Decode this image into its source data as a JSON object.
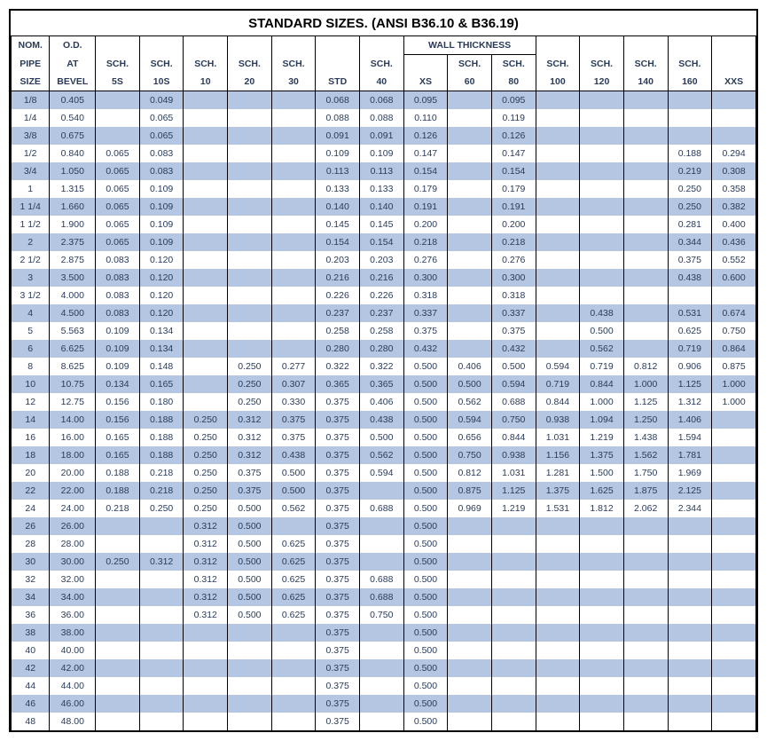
{
  "title": "STANDARD SIZES. (ANSI B36.10 & B36.19)",
  "wall_thickness_label": "WALL THICKNESS",
  "colors": {
    "row_alt": "#b5c6e3",
    "row_base": "#ffffff",
    "border": "#000000",
    "text": "#2a3b5a"
  },
  "header": {
    "col0": [
      "NOM.",
      "PIPE",
      "SIZE"
    ],
    "col1": [
      "O.D.",
      "AT",
      "BEVEL"
    ],
    "col2": [
      "",
      "SCH.",
      "5S"
    ],
    "col3": [
      "",
      "SCH.",
      "10S"
    ],
    "col4": [
      "",
      "SCH.",
      "10"
    ],
    "col5": [
      "",
      "SCH.",
      "20"
    ],
    "col6": [
      "",
      "SCH.",
      "30"
    ],
    "col7": [
      "",
      "",
      "STD"
    ],
    "col8": [
      "",
      "SCH.",
      "40"
    ],
    "col9": [
      "",
      "",
      "XS"
    ],
    "col10": [
      "",
      "SCH.",
      "60"
    ],
    "col11": [
      "",
      "SCH.",
      "80"
    ],
    "col12": [
      "",
      "SCH.",
      "100"
    ],
    "col13": [
      "",
      "SCH.",
      "120"
    ],
    "col14": [
      "",
      "SCH.",
      "140"
    ],
    "col15": [
      "",
      "SCH.",
      "160"
    ],
    "col16": [
      "",
      "",
      "XXS"
    ]
  },
  "rows": [
    [
      "1/8",
      "0.405",
      "",
      "0.049",
      "",
      "",
      "",
      "0.068",
      "0.068",
      "0.095",
      "",
      "0.095",
      "",
      "",
      "",
      "",
      ""
    ],
    [
      "1/4",
      "0.540",
      "",
      "0.065",
      "",
      "",
      "",
      "0.088",
      "0.088",
      "0.110",
      "",
      "0.119",
      "",
      "",
      "",
      "",
      ""
    ],
    [
      "3/8",
      "0.675",
      "",
      "0.065",
      "",
      "",
      "",
      "0.091",
      "0.091",
      "0.126",
      "",
      "0.126",
      "",
      "",
      "",
      "",
      ""
    ],
    [
      "1/2",
      "0.840",
      "0.065",
      "0.083",
      "",
      "",
      "",
      "0.109",
      "0.109",
      "0.147",
      "",
      "0.147",
      "",
      "",
      "",
      "0.188",
      "0.294"
    ],
    [
      "3/4",
      "1.050",
      "0.065",
      "0.083",
      "",
      "",
      "",
      "0.113",
      "0.113",
      "0.154",
      "",
      "0.154",
      "",
      "",
      "",
      "0.219",
      "0.308"
    ],
    [
      "1",
      "1.315",
      "0.065",
      "0.109",
      "",
      "",
      "",
      "0.133",
      "0.133",
      "0.179",
      "",
      "0.179",
      "",
      "",
      "",
      "0.250",
      "0.358"
    ],
    [
      "1 1/4",
      "1.660",
      "0.065",
      "0.109",
      "",
      "",
      "",
      "0.140",
      "0.140",
      "0.191",
      "",
      "0.191",
      "",
      "",
      "",
      "0.250",
      "0.382"
    ],
    [
      "1 1/2",
      "1.900",
      "0.065",
      "0.109",
      "",
      "",
      "",
      "0.145",
      "0.145",
      "0.200",
      "",
      "0.200",
      "",
      "",
      "",
      "0.281",
      "0.400"
    ],
    [
      "2",
      "2.375",
      "0.065",
      "0.109",
      "",
      "",
      "",
      "0.154",
      "0.154",
      "0.218",
      "",
      "0.218",
      "",
      "",
      "",
      "0.344",
      "0.436"
    ],
    [
      "2 1/2",
      "2.875",
      "0.083",
      "0.120",
      "",
      "",
      "",
      "0.203",
      "0.203",
      "0.276",
      "",
      "0.276",
      "",
      "",
      "",
      "0.375",
      "0.552"
    ],
    [
      "3",
      "3.500",
      "0.083",
      "0.120",
      "",
      "",
      "",
      "0.216",
      "0.216",
      "0.300",
      "",
      "0.300",
      "",
      "",
      "",
      "0.438",
      "0.600"
    ],
    [
      "3 1/2",
      "4.000",
      "0.083",
      "0.120",
      "",
      "",
      "",
      "0.226",
      "0.226",
      "0.318",
      "",
      "0.318",
      "",
      "",
      "",
      "",
      ""
    ],
    [
      "4",
      "4.500",
      "0.083",
      "0.120",
      "",
      "",
      "",
      "0.237",
      "0.237",
      "0.337",
      "",
      "0.337",
      "",
      "0.438",
      "",
      "0.531",
      "0.674"
    ],
    [
      "5",
      "5.563",
      "0.109",
      "0.134",
      "",
      "",
      "",
      "0.258",
      "0.258",
      "0.375",
      "",
      "0.375",
      "",
      "0.500",
      "",
      "0.625",
      "0.750"
    ],
    [
      "6",
      "6.625",
      "0.109",
      "0.134",
      "",
      "",
      "",
      "0.280",
      "0.280",
      "0.432",
      "",
      "0.432",
      "",
      "0.562",
      "",
      "0.719",
      "0.864"
    ],
    [
      "8",
      "8.625",
      "0.109",
      "0.148",
      "",
      "0.250",
      "0.277",
      "0.322",
      "0.322",
      "0.500",
      "0.406",
      "0.500",
      "0.594",
      "0.719",
      "0.812",
      "0.906",
      "0.875"
    ],
    [
      "10",
      "10.75",
      "0.134",
      "0.165",
      "",
      "0.250",
      "0.307",
      "0.365",
      "0.365",
      "0.500",
      "0.500",
      "0.594",
      "0.719",
      "0.844",
      "1.000",
      "1.125",
      "1.000"
    ],
    [
      "12",
      "12.75",
      "0.156",
      "0.180",
      "",
      "0.250",
      "0.330",
      "0.375",
      "0.406",
      "0.500",
      "0.562",
      "0.688",
      "0.844",
      "1.000",
      "1.125",
      "1.312",
      "1.000"
    ],
    [
      "14",
      "14.00",
      "0.156",
      "0.188",
      "0.250",
      "0.312",
      "0.375",
      "0.375",
      "0.438",
      "0.500",
      "0.594",
      "0.750",
      "0.938",
      "1.094",
      "1.250",
      "1.406",
      ""
    ],
    [
      "16",
      "16.00",
      "0.165",
      "0.188",
      "0.250",
      "0.312",
      "0.375",
      "0.375",
      "0.500",
      "0.500",
      "0.656",
      "0.844",
      "1.031",
      "1.219",
      "1.438",
      "1.594",
      ""
    ],
    [
      "18",
      "18.00",
      "0.165",
      "0.188",
      "0.250",
      "0.312",
      "0.438",
      "0.375",
      "0.562",
      "0.500",
      "0.750",
      "0.938",
      "1.156",
      "1.375",
      "1.562",
      "1.781",
      ""
    ],
    [
      "20",
      "20.00",
      "0.188",
      "0.218",
      "0.250",
      "0.375",
      "0.500",
      "0.375",
      "0.594",
      "0.500",
      "0.812",
      "1.031",
      "1.281",
      "1.500",
      "1.750",
      "1.969",
      ""
    ],
    [
      "22",
      "22.00",
      "0.188",
      "0.218",
      "0.250",
      "0.375",
      "0.500",
      "0.375",
      "",
      "0.500",
      "0.875",
      "1.125",
      "1.375",
      "1.625",
      "1.875",
      "2.125",
      ""
    ],
    [
      "24",
      "24.00",
      "0.218",
      "0.250",
      "0.250",
      "0.500",
      "0.562",
      "0.375",
      "0.688",
      "0.500",
      "0.969",
      "1.219",
      "1.531",
      "1.812",
      "2.062",
      "2.344",
      ""
    ],
    [
      "26",
      "26.00",
      "",
      "",
      "0.312",
      "0.500",
      "",
      "0.375",
      "",
      "0.500",
      "",
      "",
      "",
      "",
      "",
      "",
      ""
    ],
    [
      "28",
      "28.00",
      "",
      "",
      "0.312",
      "0.500",
      "0.625",
      "0.375",
      "",
      "0.500",
      "",
      "",
      "",
      "",
      "",
      "",
      ""
    ],
    [
      "30",
      "30.00",
      "0.250",
      "0.312",
      "0.312",
      "0.500",
      "0.625",
      "0.375",
      "",
      "0.500",
      "",
      "",
      "",
      "",
      "",
      "",
      ""
    ],
    [
      "32",
      "32.00",
      "",
      "",
      "0.312",
      "0.500",
      "0.625",
      "0.375",
      "0.688",
      "0.500",
      "",
      "",
      "",
      "",
      "",
      "",
      ""
    ],
    [
      "34",
      "34.00",
      "",
      "",
      "0.312",
      "0.500",
      "0.625",
      "0.375",
      "0.688",
      "0.500",
      "",
      "",
      "",
      "",
      "",
      "",
      ""
    ],
    [
      "36",
      "36.00",
      "",
      "",
      "0.312",
      "0.500",
      "0.625",
      "0.375",
      "0.750",
      "0.500",
      "",
      "",
      "",
      "",
      "",
      "",
      ""
    ],
    [
      "38",
      "38.00",
      "",
      "",
      "",
      "",
      "",
      "0.375",
      "",
      "0.500",
      "",
      "",
      "",
      "",
      "",
      "",
      ""
    ],
    [
      "40",
      "40.00",
      "",
      "",
      "",
      "",
      "",
      "0.375",
      "",
      "0.500",
      "",
      "",
      "",
      "",
      "",
      "",
      ""
    ],
    [
      "42",
      "42.00",
      "",
      "",
      "",
      "",
      "",
      "0.375",
      "",
      "0.500",
      "",
      "",
      "",
      "",
      "",
      "",
      ""
    ],
    [
      "44",
      "44.00",
      "",
      "",
      "",
      "",
      "",
      "0.375",
      "",
      "0.500",
      "",
      "",
      "",
      "",
      "",
      "",
      ""
    ],
    [
      "46",
      "46.00",
      "",
      "",
      "",
      "",
      "",
      "0.375",
      "",
      "0.500",
      "",
      "",
      "",
      "",
      "",
      "",
      ""
    ],
    [
      "48",
      "48.00",
      "",
      "",
      "",
      "",
      "",
      "0.375",
      "",
      "0.500",
      "",
      "",
      "",
      "",
      "",
      "",
      ""
    ]
  ]
}
